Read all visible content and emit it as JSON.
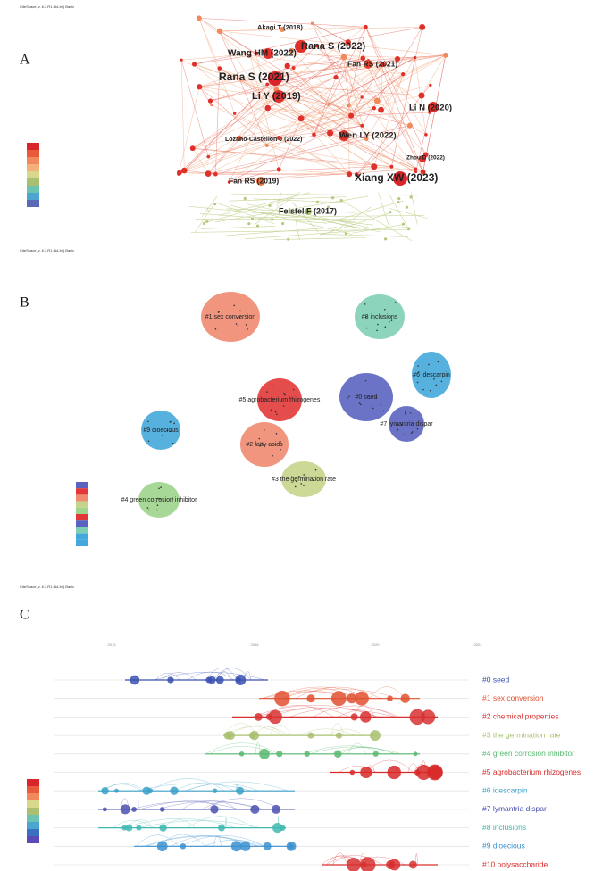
{
  "panels": [
    {
      "label": "A",
      "header": "CiteSpace, v. 6.3.R1 (64-bit) Basic",
      "nodes": [
        {
          "label": "Akagi T (2018)"
        },
        {
          "label": "Rana S (2022)"
        },
        {
          "label": "Wang HM (2022)"
        },
        {
          "label": "Fan RS (2021)"
        },
        {
          "label": "Rana S (2021)"
        },
        {
          "label": "Li Y (2019)"
        },
        {
          "label": "Li N (2020)"
        },
        {
          "label": "Lozano-Castellón J (2022)"
        },
        {
          "label": "Wen LY (2022)"
        },
        {
          "label": "Zhou D (2022)"
        },
        {
          "label": "Xiang XW (2023)"
        },
        {
          "label": "Fan RS (2019)"
        },
        {
          "label": "Feistel F (2017)"
        }
      ]
    },
    {
      "label": "B",
      "header": "CiteSpace, v. 6.3.R1 (64-bit) Basic",
      "clusters": [
        {
          "label": "#8 inclusions"
        },
        {
          "label": "#1 sex conversion"
        },
        {
          "label": "#6 idescarpin"
        },
        {
          "label": "#5 agrobacterium rhizogenes"
        },
        {
          "label": "#0 seed"
        },
        {
          "label": "#7 lymantria dispar"
        },
        {
          "label": "#9 dioecious"
        },
        {
          "label": "#2 fatty acids"
        },
        {
          "label": "#3 the germination rate"
        },
        {
          "label": "#4 green corrosion inhibitor"
        }
      ]
    },
    {
      "label": "C",
      "header": "CiteSpace, v. 6.3.R1 (64-bit) Basic",
      "years": [
        "2013",
        "2016",
        "2020",
        "2024"
      ],
      "clusters": [
        {
          "label": "#0 seed"
        },
        {
          "label": "#1 sex conversion"
        },
        {
          "label": "#2 chemical properties"
        },
        {
          "label": "#3 the germination rate"
        },
        {
          "label": "#4 green corrosion inhibitor"
        },
        {
          "label": "#5 agrobacterium rhizogenes"
        },
        {
          "label": "#6 idescarpin"
        },
        {
          "label": "#7 lymantria dispar"
        },
        {
          "label": "#8 inclusions"
        },
        {
          "label": "#9 dioecious"
        },
        {
          "label": "#10 polysaccharide"
        }
      ]
    }
  ]
}
